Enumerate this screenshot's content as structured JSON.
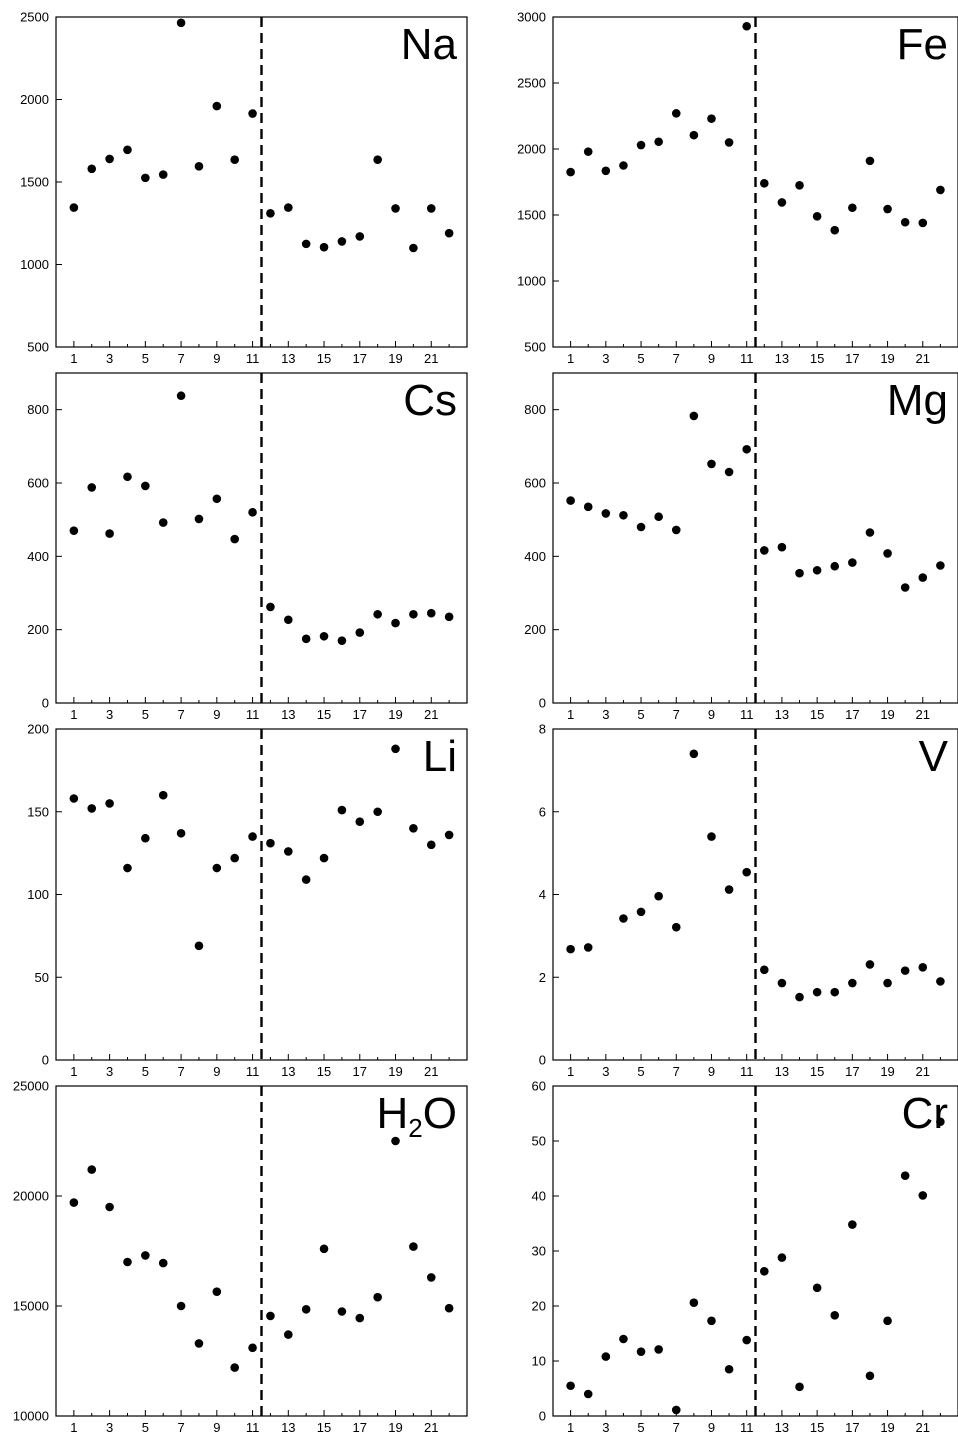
{
  "chart_data": [
    {
      "type": "scatter",
      "title": "Na",
      "x_ticks": [
        1,
        3,
        5,
        7,
        9,
        11,
        13,
        15,
        17,
        19,
        21
      ],
      "xlim": [
        0,
        23
      ],
      "ylim": [
        500,
        2500
      ],
      "y_ticks": [
        500,
        1000,
        1500,
        2000,
        2500
      ],
      "divider_x": 11.5,
      "x": [
        1,
        2,
        3,
        4,
        5,
        6,
        7,
        8,
        9,
        10,
        11,
        12,
        13,
        14,
        15,
        16,
        17,
        18,
        19,
        20,
        21,
        22
      ],
      "y": [
        1345,
        1580,
        1640,
        1695,
        1525,
        1545,
        2465,
        1595,
        1960,
        1635,
        1915,
        1310,
        1345,
        1125,
        1105,
        1140,
        1170,
        1635,
        1340,
        1100,
        1340,
        1190
      ]
    },
    {
      "type": "scatter",
      "title": "Fe",
      "x_ticks": [
        1,
        3,
        5,
        7,
        9,
        11,
        13,
        15,
        17,
        19,
        21
      ],
      "xlim": [
        0,
        23
      ],
      "ylim": [
        500,
        3000
      ],
      "y_ticks": [
        500,
        1000,
        1500,
        2000,
        2500,
        3000
      ],
      "divider_x": 11.5,
      "x": [
        1,
        2,
        3,
        4,
        5,
        6,
        7,
        8,
        9,
        10,
        11,
        12,
        13,
        14,
        15,
        16,
        17,
        18,
        19,
        20,
        21,
        22
      ],
      "y": [
        1825,
        1980,
        1835,
        1875,
        2030,
        2055,
        2270,
        2105,
        2230,
        2050,
        2930,
        1740,
        1595,
        1725,
        1490,
        1385,
        1555,
        1910,
        1545,
        1445,
        1440,
        1690
      ]
    },
    {
      "type": "scatter",
      "title": "Cs",
      "x_ticks": [
        1,
        3,
        5,
        7,
        9,
        11,
        13,
        15,
        17,
        19,
        21
      ],
      "xlim": [
        0,
        23
      ],
      "ylim": [
        0,
        900
      ],
      "y_ticks": [
        0,
        200,
        400,
        600,
        800
      ],
      "divider_x": 11.5,
      "x": [
        1,
        2,
        3,
        4,
        5,
        6,
        7,
        8,
        9,
        10,
        11,
        12,
        13,
        14,
        15,
        16,
        17,
        18,
        19,
        20,
        21,
        22
      ],
      "y": [
        470,
        588,
        462,
        617,
        592,
        492,
        838,
        502,
        557,
        447,
        520,
        262,
        227,
        175,
        182,
        170,
        192,
        242,
        218,
        242,
        245,
        235
      ]
    },
    {
      "type": "scatter",
      "title": "Mg",
      "x_ticks": [
        1,
        3,
        5,
        7,
        9,
        11,
        13,
        15,
        17,
        19,
        21
      ],
      "xlim": [
        0,
        23
      ],
      "ylim": [
        0,
        900
      ],
      "y_ticks": [
        0,
        200,
        400,
        600,
        800
      ],
      "divider_x": 11.5,
      "x": [
        1,
        2,
        3,
        4,
        5,
        6,
        7,
        8,
        9,
        10,
        11,
        12,
        13,
        14,
        15,
        16,
        17,
        18,
        19,
        20,
        21,
        22
      ],
      "y": [
        552,
        535,
        517,
        512,
        480,
        508,
        472,
        783,
        652,
        630,
        692,
        416,
        425,
        354,
        362,
        373,
        383,
        465,
        408,
        315,
        342,
        375
      ]
    },
    {
      "type": "scatter",
      "title": "Li",
      "x_ticks": [
        1,
        3,
        5,
        7,
        9,
        11,
        13,
        15,
        17,
        19,
        21
      ],
      "xlim": [
        0,
        23
      ],
      "ylim": [
        0,
        200
      ],
      "y_ticks": [
        0,
        50,
        100,
        150,
        200
      ],
      "divider_x": 11.5,
      "x": [
        1,
        2,
        3,
        4,
        5,
        6,
        7,
        8,
        9,
        10,
        11,
        12,
        13,
        14,
        15,
        16,
        17,
        18,
        19,
        20,
        21,
        22
      ],
      "y": [
        158,
        152,
        155,
        116,
        134,
        160,
        137,
        69,
        116,
        122,
        135,
        131,
        126,
        109,
        122,
        151,
        144,
        150,
        188,
        140,
        130,
        136
      ]
    },
    {
      "type": "scatter",
      "title": "V",
      "x_ticks": [
        1,
        3,
        5,
        7,
        9,
        11,
        13,
        15,
        17,
        19,
        21
      ],
      "xlim": [
        0,
        23
      ],
      "ylim": [
        0,
        8
      ],
      "y_ticks": [
        0,
        2,
        4,
        6,
        8
      ],
      "divider_x": 11.5,
      "x": [
        1,
        2,
        4,
        5,
        6,
        7,
        8,
        9,
        10,
        11,
        12,
        13,
        14,
        15,
        16,
        17,
        18,
        19,
        20,
        21,
        22
      ],
      "y": [
        2.68,
        2.72,
        3.42,
        3.58,
        3.96,
        3.21,
        7.4,
        5.4,
        4.12,
        4.54,
        2.18,
        1.86,
        1.52,
        1.64,
        1.64,
        1.86,
        2.31,
        1.86,
        2.16,
        2.24,
        1.9
      ]
    },
    {
      "type": "scatter",
      "title": "H",
      "title_sub": "2",
      "title_tail": "O",
      "x_ticks": [
        1,
        3,
        5,
        7,
        9,
        11,
        13,
        15,
        17,
        19,
        21
      ],
      "xlim": [
        0,
        23
      ],
      "ylim": [
        10000,
        25000
      ],
      "y_ticks": [
        10000,
        15000,
        20000,
        25000
      ],
      "divider_x": 11.5,
      "x": [
        1,
        2,
        3,
        4,
        5,
        6,
        7,
        8,
        9,
        10,
        11,
        12,
        13,
        14,
        15,
        16,
        17,
        18,
        19,
        20,
        21,
        22
      ],
      "y": [
        19700,
        21200,
        19500,
        17000,
        17300,
        16950,
        15000,
        13300,
        15650,
        12200,
        13100,
        14550,
        13700,
        14850,
        17600,
        14750,
        14450,
        15400,
        22500,
        17700,
        16300,
        14900
      ]
    },
    {
      "type": "scatter",
      "title": "Cr",
      "x_ticks": [
        1,
        3,
        5,
        7,
        9,
        11,
        13,
        15,
        17,
        19,
        21
      ],
      "xlim": [
        0,
        23
      ],
      "ylim": [
        0,
        60
      ],
      "y_ticks": [
        0,
        10,
        20,
        30,
        40,
        50,
        60
      ],
      "divider_x": 11.5,
      "x": [
        1,
        2,
        3,
        4,
        5,
        6,
        7,
        8,
        9,
        10,
        11,
        12,
        13,
        14,
        15,
        16,
        17,
        18,
        19,
        20,
        21,
        22
      ],
      "y": [
        5.5,
        4,
        10.8,
        14,
        11.7,
        12.1,
        1.1,
        20.6,
        17.3,
        8.5,
        13.8,
        26.3,
        28.8,
        5.3,
        23.3,
        18.3,
        34.8,
        7.3,
        17.3,
        43.7,
        40.1,
        53.5
      ]
    }
  ]
}
